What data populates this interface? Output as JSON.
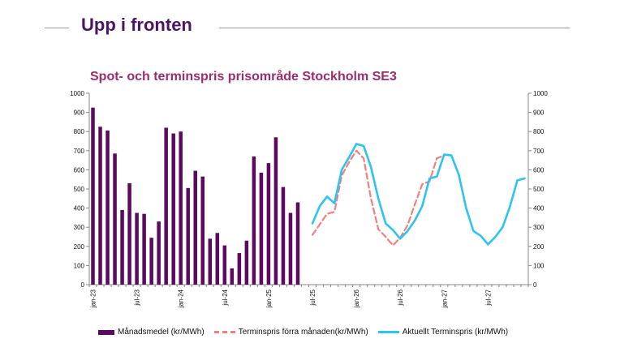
{
  "slide": {
    "title": "Upp i fronten"
  },
  "chart_data": {
    "type": "bar+line",
    "title": "Spot- och terminspris prisområde Stockholm SE3",
    "ylim": [
      0,
      1000
    ],
    "yticks": [
      "0",
      "100",
      "200",
      "300",
      "400",
      "500",
      "600",
      "700",
      "800",
      "900",
      "1000"
    ],
    "y2ticks": [
      "0",
      "100",
      "200",
      "300",
      "400",
      "500",
      "600",
      "700",
      "800",
      "900",
      "1000"
    ],
    "x_tick_labels": [
      "jan-23",
      "jul-23",
      "jan-24",
      "jul-24",
      "jan-25",
      "jul-25",
      "jan-26",
      "jul-26",
      "jan-27",
      "jul-27"
    ],
    "months": [
      "jan-23",
      "feb-23",
      "mar-23",
      "apr-23",
      "maj-23",
      "jun-23",
      "jul-23",
      "aug-23",
      "sep-23",
      "okt-23",
      "nov-23",
      "dec-23",
      "jan-24",
      "feb-24",
      "mar-24",
      "apr-24",
      "maj-24",
      "jun-24",
      "jul-24",
      "aug-24",
      "sep-24",
      "okt-24",
      "nov-24",
      "dec-24",
      "jan-25",
      "feb-25",
      "mar-25",
      "apr-25",
      "maj-25",
      "jun-25",
      "jul-25",
      "aug-25",
      "sep-25",
      "okt-25",
      "nov-25",
      "dec-25",
      "jan-26",
      "feb-26",
      "mar-26",
      "apr-26",
      "maj-26",
      "jun-26",
      "jul-26",
      "aug-26",
      "sep-26",
      "okt-26",
      "nov-26",
      "dec-26",
      "jan-27",
      "feb-27",
      "mar-27",
      "apr-27",
      "maj-27",
      "jun-27",
      "jul-27",
      "aug-27",
      "sep-27",
      "okt-27",
      "nov-27",
      "dec-27"
    ],
    "grid": false,
    "legend_position": "bottom",
    "colors": {
      "bars": "#5c0a5f",
      "prev_forward": "#f08080",
      "forward": "#2ec4f0"
    },
    "series": [
      {
        "name": "Månadsmedel (kr/MWh)",
        "type": "bar",
        "start_month": "jan-23",
        "values": [
          925,
          825,
          805,
          685,
          390,
          530,
          375,
          370,
          245,
          330,
          820,
          790,
          800,
          505,
          595,
          565,
          240,
          270,
          205,
          85,
          165,
          230,
          670,
          585,
          635,
          770,
          510,
          375,
          430
        ]
      },
      {
        "name": "Terminspris förra månaden(kr/MWh)",
        "type": "line",
        "style": "dashed",
        "start_month": "jul-25",
        "values": [
          260,
          315,
          370,
          380,
          570,
          640,
          700,
          660,
          450,
          290,
          250,
          205,
          245,
          310,
          420,
          525,
          540,
          660,
          675
        ]
      },
      {
        "name": "Aktuellt Terminspris (kr/MWh)",
        "type": "line",
        "style": "solid",
        "start_month": "jul-25",
        "values": [
          320,
          410,
          460,
          425,
          600,
          665,
          735,
          725,
          615,
          450,
          320,
          285,
          240,
          280,
          335,
          410,
          555,
          565,
          680,
          675,
          575,
          400,
          280,
          255,
          210,
          250,
          300,
          410,
          545,
          555
        ]
      }
    ]
  }
}
